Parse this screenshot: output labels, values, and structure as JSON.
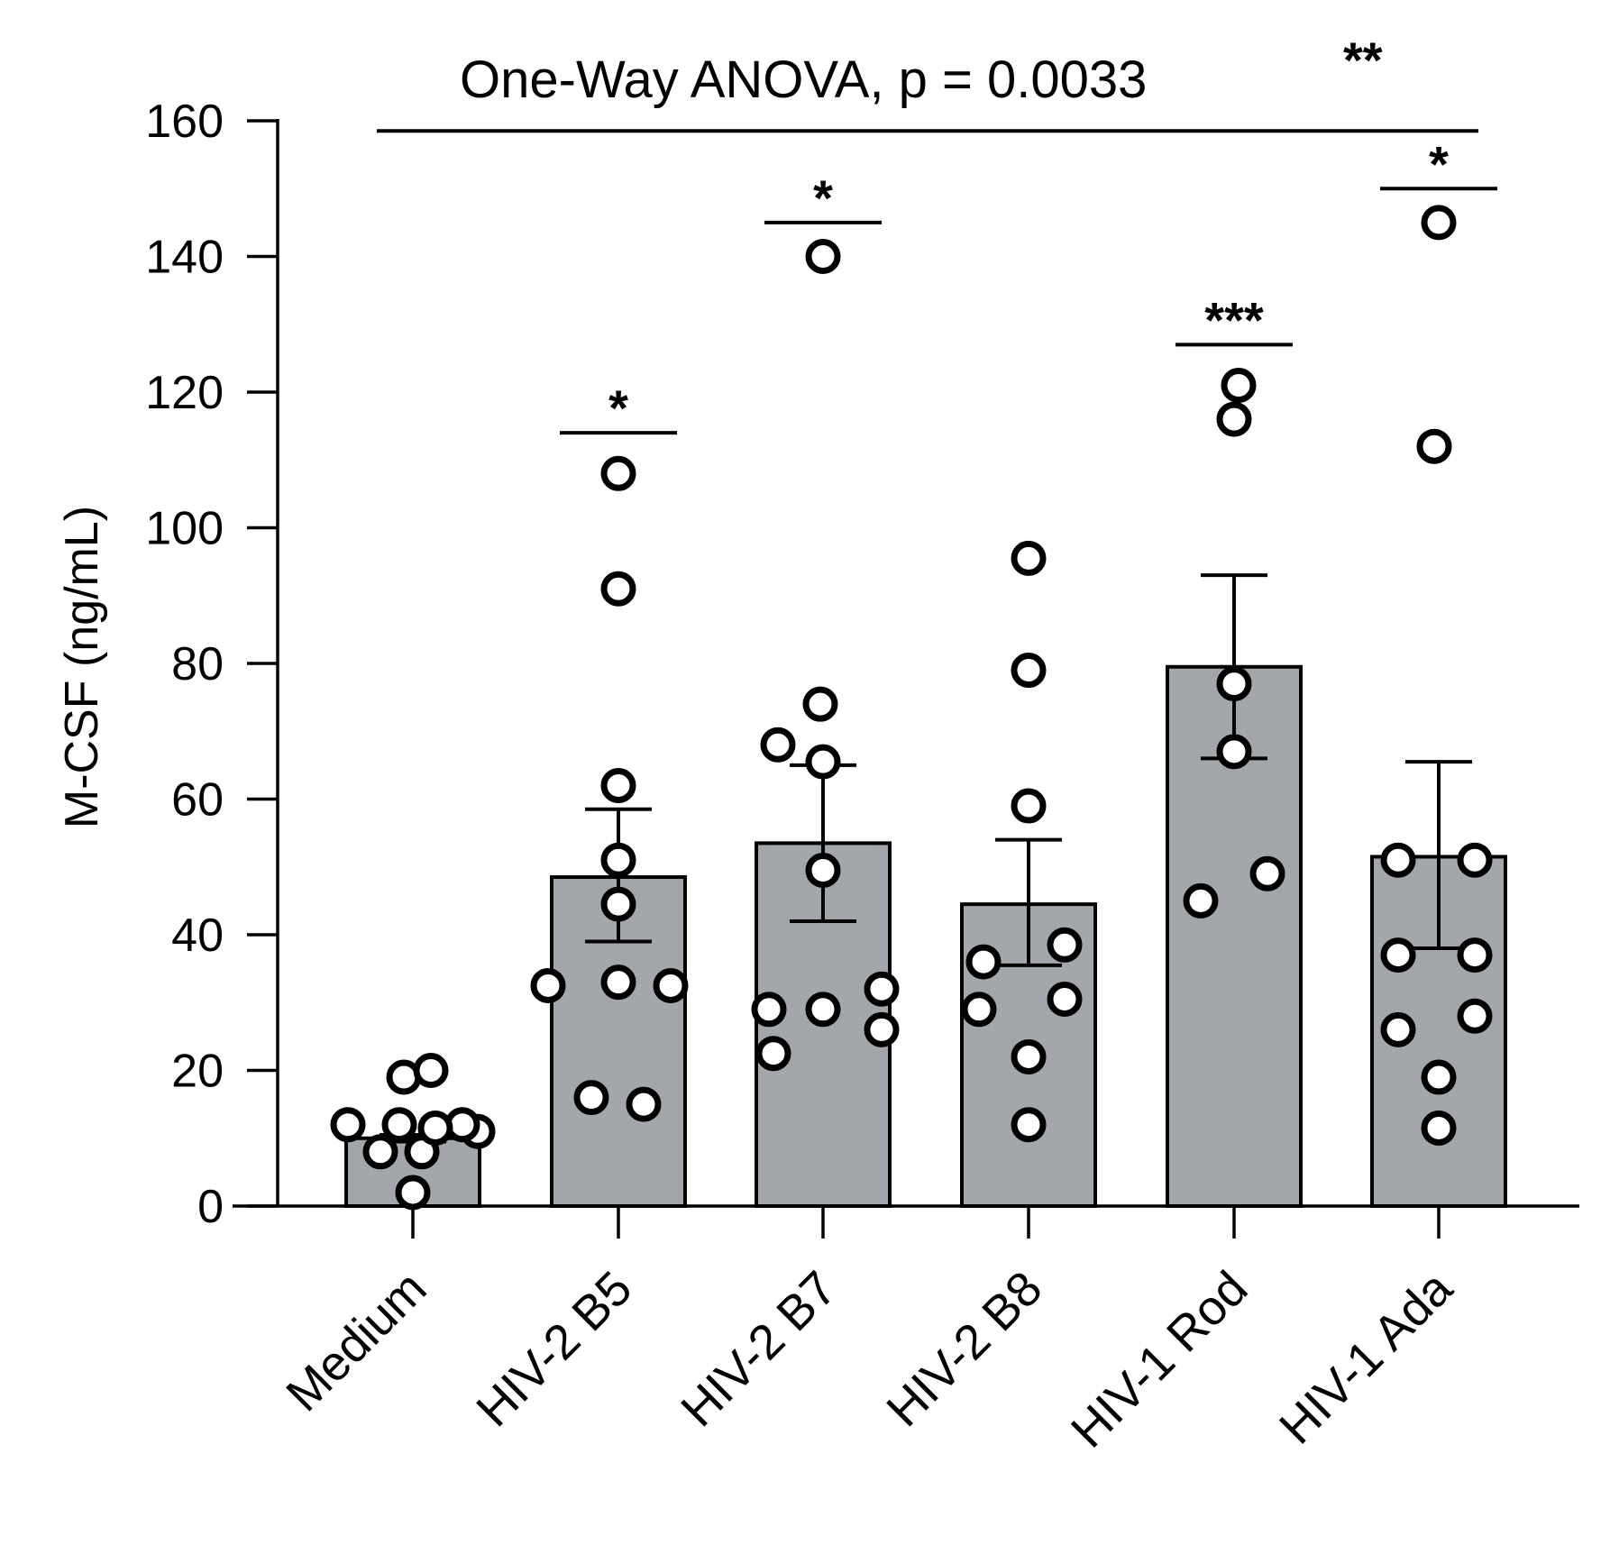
{
  "chart_data": {
    "type": "bar",
    "title": "",
    "xlabel": "",
    "ylabel": "M-CSF (ng/mL)",
    "ylim": [
      0,
      160
    ],
    "yticks": [
      0,
      20,
      40,
      60,
      80,
      100,
      120,
      140,
      160
    ],
    "categories": [
      "Medium",
      "HIV-2 B5",
      "HIV-2 B7",
      "HIV-2 B8",
      "HIV-1 Rod",
      "HIV-1 Ada"
    ],
    "values": [
      10,
      48.5,
      53.5,
      44.5,
      79.5,
      51.5
    ],
    "error_upper": [
      10.5,
      58.5,
      65,
      54,
      93,
      65.5
    ],
    "error_lower": [
      9.5,
      39,
      42,
      35.5,
      66,
      38
    ],
    "points": [
      [
        12,
        11,
        12,
        8,
        8,
        19,
        20,
        2,
        11.5,
        12
      ],
      [
        108,
        91,
        62,
        51,
        44.5,
        32.5,
        33,
        32.5,
        16,
        15
      ],
      [
        140,
        74,
        68,
        65.5,
        49.5,
        29,
        32,
        29,
        22.5,
        26
      ],
      [
        95.5,
        79,
        59,
        38.5,
        36,
        30.5,
        29,
        22,
        12
      ],
      [
        121,
        116,
        77,
        67,
        49,
        45
      ],
      [
        145,
        112,
        51,
        51,
        37,
        37,
        26,
        28,
        19,
        11.5
      ]
    ],
    "significance": [
      "",
      "*",
      "*",
      "",
      "***",
      "*"
    ],
    "sig_line_values": [
      null,
      114,
      145,
      null,
      127,
      150
    ],
    "anova": {
      "text": "One-Way ANOVA, p = 0.0033",
      "stars": "**",
      "line_value": 158.5
    }
  }
}
